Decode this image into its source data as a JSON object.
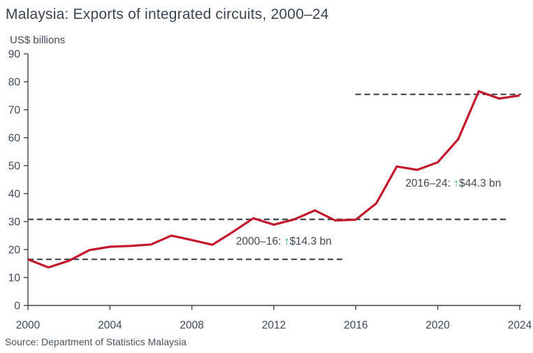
{
  "chart_data": {
    "type": "line",
    "title": "Malaysia: Exports of integrated circuits, 2000–24",
    "unit_label": "US$ billions",
    "source": "Source: Department of Statistics Malaysia",
    "series_name": "Exports of integrated circuits (US$ billions)",
    "x": [
      2000,
      2001,
      2002,
      2003,
      2004,
      2005,
      2006,
      2007,
      2008,
      2009,
      2010,
      2011,
      2012,
      2013,
      2014,
      2015,
      2016,
      2017,
      2018,
      2019,
      2020,
      2021,
      2022,
      2023,
      2024
    ],
    "values": [
      16.5,
      13.6,
      16.0,
      19.8,
      21.0,
      21.3,
      21.8,
      25.0,
      23.4,
      21.7,
      26.3,
      31.2,
      28.9,
      30.8,
      34.0,
      30.4,
      30.7,
      36.5,
      49.7,
      48.5,
      51.2,
      59.5,
      76.6,
      74.0,
      75.1
    ],
    "xlim": [
      2000,
      2024
    ],
    "ylim": [
      0,
      90
    ],
    "x_ticks": [
      2000,
      2004,
      2008,
      2012,
      2016,
      2020,
      2024
    ],
    "y_ticks": [
      0,
      10,
      20,
      30,
      40,
      50,
      60,
      70,
      80,
      90
    ],
    "grid": false,
    "legend": "none",
    "reference_lines": [
      {
        "value": 16.5,
        "from_year": 2000,
        "to_year": 2015.45
      },
      {
        "value": 30.8,
        "from_year": 2000,
        "to_year": 2023.45
      },
      {
        "value": 75.5,
        "from_year": 2015.98,
        "to_year": 2024.07
      }
    ],
    "annotations": [
      {
        "prefix": "2000–16: ",
        "arrow": "↑",
        "amount": "$14.3 bn",
        "anchor_year": 2010.15,
        "anchor_value": 21.75
      },
      {
        "prefix": "2016–24: ",
        "arrow": "↑",
        "amount": "$44.3 bn",
        "anchor_year": 2018.42,
        "anchor_value": 42.5
      }
    ],
    "colors": {
      "line": "#c2182e",
      "dashed": "#4a4f57",
      "axis": "#3f4550",
      "tick_text": "#3f4854",
      "annotation_text": "#3f4854",
      "arrow_green": "#1fab54",
      "title": "#3b4450",
      "source_text": "#4b525c"
    }
  }
}
